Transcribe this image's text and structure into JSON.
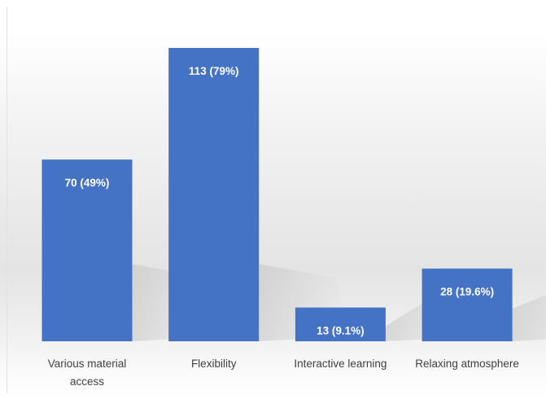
{
  "chart_data": {
    "type": "bar",
    "categories": [
      [
        "Various material",
        "access"
      ],
      [
        "Flexibility"
      ],
      [
        "Interactive learning"
      ],
      [
        "Relaxing atmosphere"
      ]
    ],
    "values": [
      70,
      113,
      13,
      28
    ],
    "data_labels": [
      "70 (49%)",
      "113 (79%)",
      "13 (9.1%)",
      "28 (19.6%)"
    ],
    "title": "",
    "xlabel": "",
    "ylabel": "",
    "ylim": [
      0,
      113
    ],
    "grid": false,
    "legend": "none",
    "bar_color": "#4472C4",
    "label_color": "#404040"
  }
}
